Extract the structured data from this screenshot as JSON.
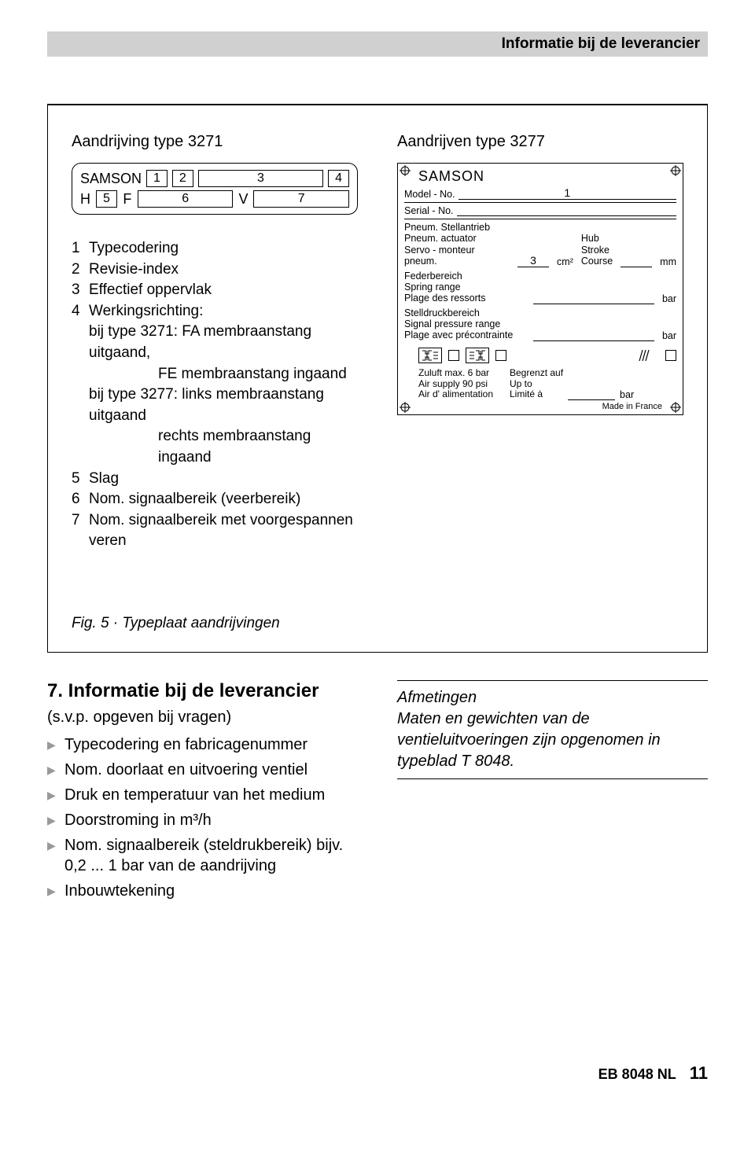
{
  "header": {
    "title": "Informatie bij de leverancier"
  },
  "figure": {
    "left": {
      "title": "Aandrijving type 3271",
      "samson": "SAMSON",
      "boxes_top": [
        "1",
        "2",
        "3",
        "4"
      ],
      "row2": {
        "h": "H",
        "b5": "5",
        "f": "F",
        "b6": "6",
        "v": "V",
        "b7": "7"
      },
      "legend": [
        {
          "n": "1",
          "t": "Typecodering"
        },
        {
          "n": "2",
          "t": "Revisie-index"
        },
        {
          "n": "3",
          "t": "Effectief oppervlak"
        },
        {
          "n": "4",
          "t": "Werkingsrichting:"
        },
        {
          "n": "",
          "t": "bij type 3271: FA membraanstang uitgaand,"
        },
        {
          "n": "",
          "t": "FE membraanstang ingaand",
          "indent": true
        },
        {
          "n": "",
          "t": "bij type 3277: links membraanstang uitgaand"
        },
        {
          "n": "",
          "t": "rechts membraanstang ingaand",
          "indent": true
        },
        {
          "n": "5",
          "t": "Slag"
        },
        {
          "n": "6",
          "t": "Nom. signaalbereik (veerbereik)"
        },
        {
          "n": "7",
          "t": "Nom. signaalbereik met voorgespannen veren"
        }
      ]
    },
    "right": {
      "title": "Aandrijven type 3277",
      "samson": "SAMSON",
      "model": "Model - No.",
      "model_val": "1",
      "serial": "Serial - No.",
      "stell": {
        "de": "Pneum. Stellantrieb",
        "en": "Pneum. actuator",
        "fr": "Servo - monteur pneum."
      },
      "stell_val": "3",
      "cm2": "cm²",
      "hub": {
        "de": "Hub",
        "en": "Stroke",
        "fr": "Course"
      },
      "mm": "mm",
      "feder": {
        "de": "Federbereich",
        "en": "Spring range",
        "fr": "Plage des ressorts"
      },
      "bar1": "bar",
      "stelldruck": {
        "de": "Stelldruckbereich",
        "en": "Signal pressure range",
        "fr": "Plage avec précontrainte"
      },
      "bar2": "bar",
      "zuluft": {
        "l1": "Zuluft max. 6 bar",
        "l2": "Air supply 90 psi",
        "l3": "Air d' alimentation"
      },
      "begrenzt": {
        "l1": "Begrenzt auf",
        "l2": "Up to",
        "l3": "Limité à"
      },
      "bar3": "bar",
      "made": "Made in France"
    },
    "caption": "Fig. 5 · Typeplaat aandrijvingen"
  },
  "section7": {
    "heading": "7. Informatie bij de leverancier",
    "paren": "(s.v.p. opgeven bij vragen)",
    "bullets": [
      "Typecodering en fabricagenummer",
      "Nom. doorlaat en uitvoering ventiel",
      "Druk en temperatuur van het medium",
      "Doorstroming in m³/h",
      "Nom. signaalbereik (steldrukbereik) bijv. 0,2 ... 1 bar van de aandrijving",
      "Inbouwtekening"
    ],
    "info": {
      "lead": "Afmetingen",
      "body": "Maten en gewichten van de ventieluitvoeringen zijn opgenomen in typeblad T 8048."
    }
  },
  "footer": {
    "doc": "EB 8048 NL",
    "page": "11"
  }
}
